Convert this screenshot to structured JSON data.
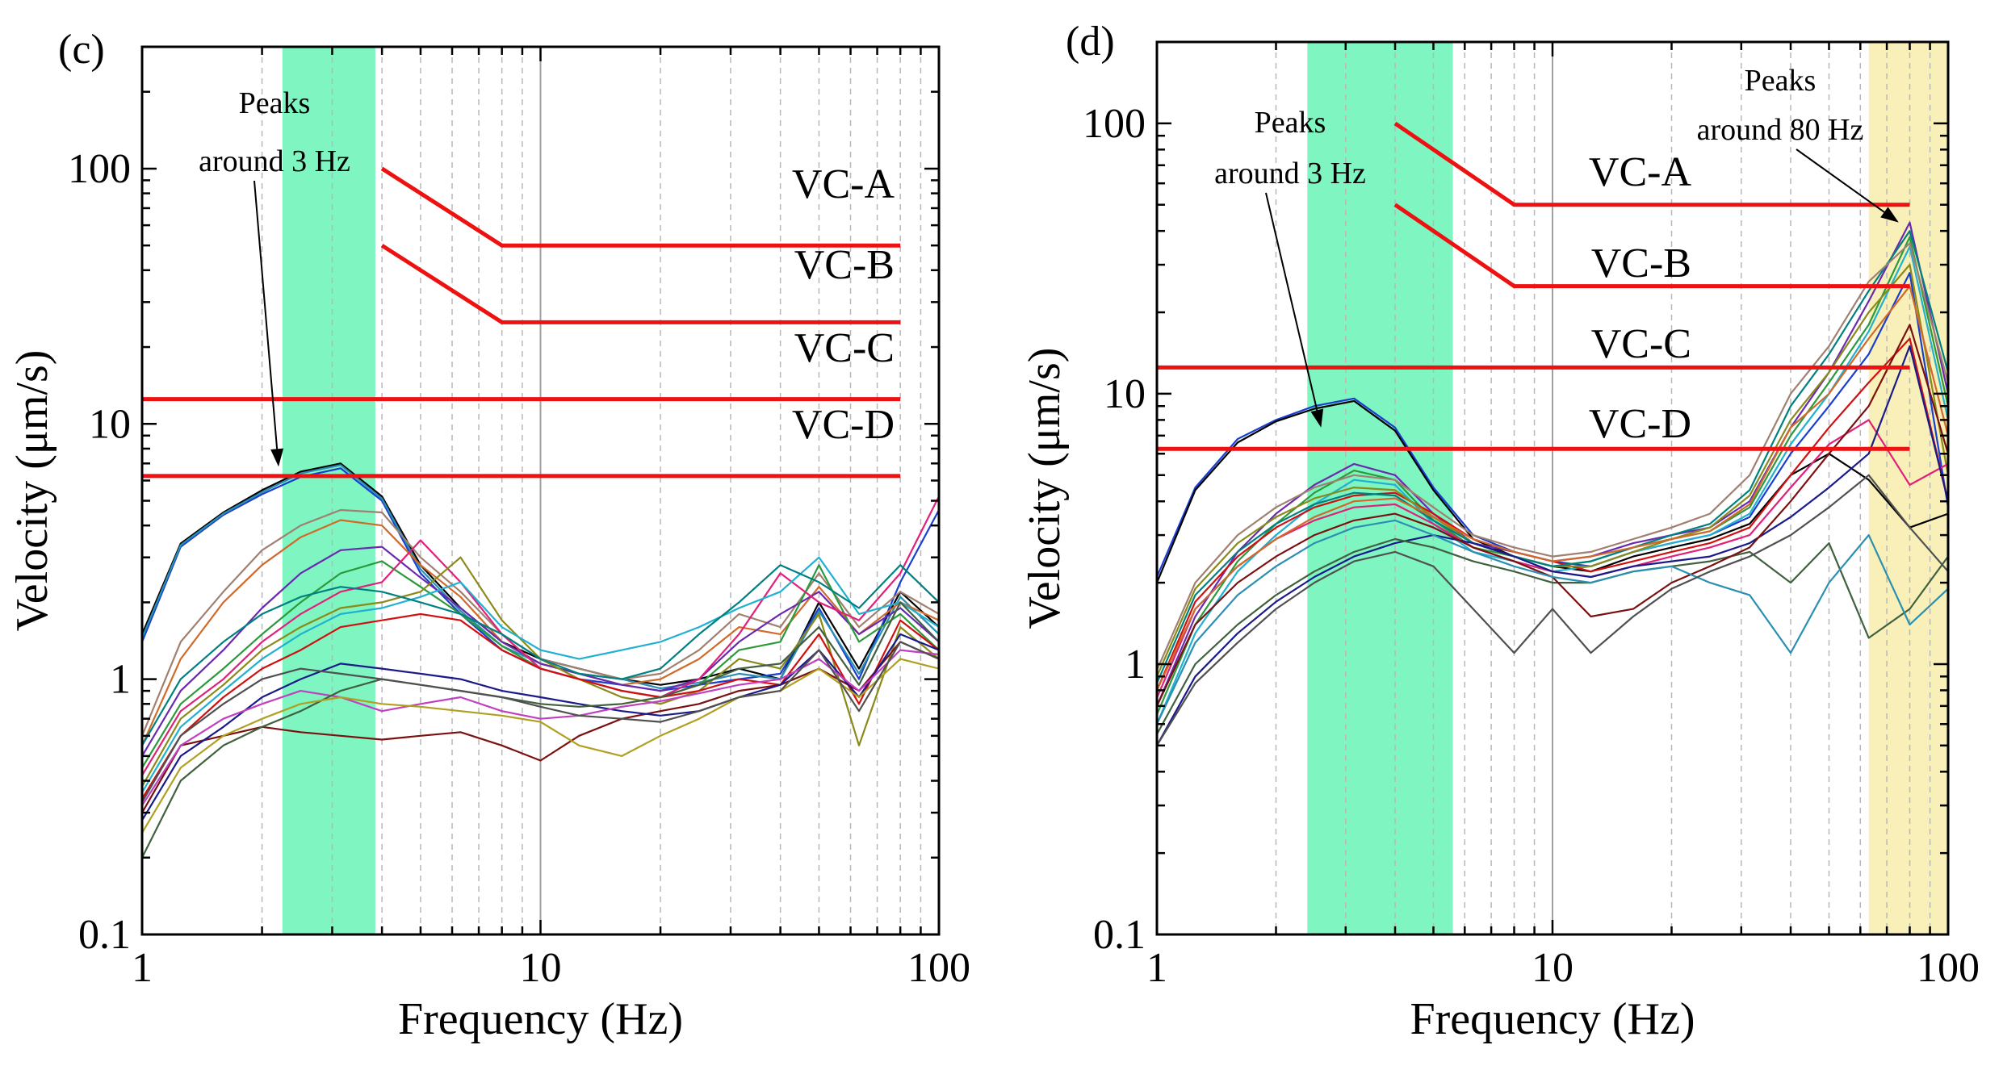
{
  "chart_data": [
    {
      "panel_label": "(c)",
      "type": "line",
      "xlabel": "Frequency (Hz)",
      "ylabel": "Velocity (μm/s)",
      "xscale": "log",
      "yscale": "log",
      "xlim": [
        1,
        100
      ],
      "ylim": [
        0.1,
        300
      ],
      "x_tick_labels": [
        "1",
        "10",
        "100"
      ],
      "y_tick_labels": [
        "0.1",
        "1",
        "10",
        "100"
      ],
      "criteria": [
        {
          "name": "VC-A",
          "points": [
            [
              4,
              100
            ],
            [
              8,
              50
            ],
            [
              80,
              50
            ]
          ]
        },
        {
          "name": "VC-B",
          "points": [
            [
              4,
              50
            ],
            [
              8,
              25
            ],
            [
              80,
              25
            ]
          ]
        },
        {
          "name": "VC-C",
          "points": [
            [
              1,
              12.5
            ],
            [
              80,
              12.5
            ]
          ]
        },
        {
          "name": "VC-D",
          "points": [
            [
              1,
              6.25
            ],
            [
              80,
              6.25
            ]
          ]
        }
      ],
      "highlight_bands": [
        {
          "x_range": [
            2.25,
            3.85
          ],
          "color": "#7ff5c2"
        }
      ],
      "annotations": [
        {
          "line1": "Peaks",
          "line2": "around 3 Hz",
          "arrow_to": [
            2.2,
            6.8
          ]
        }
      ],
      "x_values": [
        1,
        1.25,
        1.6,
        2,
        2.5,
        3.15,
        4,
        5,
        6.3,
        8,
        10,
        12.5,
        16,
        20,
        25,
        31.5,
        40,
        50,
        63,
        80,
        100
      ],
      "series": [
        {
          "color": "#000000",
          "values": [
            1.5,
            3.4,
            4.5,
            5.5,
            6.5,
            7.0,
            5.2,
            2.8,
            1.9,
            1.4,
            1.2,
            1.1,
            1.0,
            0.95,
            1.0,
            1.1,
            1.0,
            2.0,
            1.1,
            2.2,
            1.6
          ]
        },
        {
          "color": "#1a3fd0",
          "values": [
            1.4,
            3.3,
            4.4,
            5.3,
            6.2,
            6.7,
            5.0,
            2.6,
            1.8,
            1.3,
            1.1,
            1.0,
            0.95,
            0.9,
            0.95,
            1.0,
            1.05,
            1.9,
            1.0,
            2.4,
            4.6
          ]
        },
        {
          "color": "#2a8fb0",
          "values": [
            1.45,
            3.35,
            4.45,
            5.4,
            6.4,
            6.9,
            5.1,
            2.7,
            1.85,
            1.35,
            1.15,
            1.05,
            1.0,
            0.92,
            0.97,
            1.05,
            1.0,
            1.85,
            1.05,
            2.1,
            1.5
          ]
        },
        {
          "color": "#a08070",
          "values": [
            0.6,
            1.4,
            2.2,
            3.2,
            4.0,
            4.6,
            4.5,
            3.0,
            2.2,
            1.5,
            1.2,
            1.1,
            1.0,
            1.05,
            1.3,
            1.8,
            1.6,
            2.6,
            1.6,
            2.2,
            1.8
          ]
        },
        {
          "color": "#d06a2a",
          "values": [
            0.55,
            1.2,
            2.0,
            2.8,
            3.6,
            4.2,
            4.0,
            2.8,
            2.1,
            1.4,
            1.15,
            1.05,
            0.95,
            1.0,
            1.2,
            1.6,
            1.5,
            2.3,
            1.5,
            2.0,
            1.7
          ]
        },
        {
          "color": "#6a2ab0",
          "values": [
            0.5,
            0.9,
            1.3,
            1.9,
            2.6,
            3.2,
            3.3,
            2.5,
            1.9,
            1.4,
            1.15,
            1.05,
            0.95,
            0.9,
            1.0,
            1.4,
            1.8,
            2.2,
            1.5,
            1.9,
            1.4
          ]
        },
        {
          "color": "#2a9a3a",
          "values": [
            0.45,
            0.8,
            1.1,
            1.5,
            2.0,
            2.6,
            2.9,
            2.3,
            1.8,
            1.35,
            1.1,
            1.0,
            0.9,
            0.85,
            0.95,
            1.3,
            1.4,
            2.8,
            1.4,
            1.8,
            1.3
          ]
        },
        {
          "color": "#e0207a",
          "values": [
            0.42,
            0.75,
            1.0,
            1.4,
            1.8,
            2.2,
            2.4,
            3.5,
            2.4,
            1.5,
            1.1,
            1.0,
            0.9,
            0.85,
            1.0,
            1.5,
            2.6,
            2.0,
            1.7,
            2.6,
            5.2
          ]
        },
        {
          "color": "#8a8a1a",
          "values": [
            0.38,
            0.7,
            0.95,
            1.3,
            1.6,
            1.9,
            2.0,
            2.2,
            3.0,
            1.7,
            1.2,
            1.0,
            0.85,
            0.8,
            0.9,
            1.2,
            1.1,
            1.8,
            0.55,
            1.6,
            1.2
          ]
        },
        {
          "color": "#20b0d0",
          "values": [
            0.36,
            0.65,
            0.9,
            1.2,
            1.5,
            1.8,
            1.9,
            2.1,
            2.4,
            1.6,
            1.3,
            1.2,
            1.3,
            1.4,
            1.6,
            1.9,
            2.2,
            3.0,
            1.8,
            2.0,
            1.6
          ]
        },
        {
          "color": "#d01010",
          "values": [
            0.34,
            0.6,
            0.85,
            1.1,
            1.3,
            1.6,
            1.7,
            1.8,
            1.7,
            1.3,
            1.1,
            1.0,
            0.9,
            0.85,
            0.9,
            1.0,
            0.95,
            1.5,
            0.8,
            1.7,
            1.3
          ]
        },
        {
          "color": "#7a1010",
          "values": [
            0.3,
            0.55,
            0.6,
            0.65,
            0.62,
            0.6,
            0.58,
            0.6,
            0.62,
            0.55,
            0.48,
            0.6,
            0.7,
            0.75,
            0.8,
            0.9,
            0.95,
            1.1,
            0.9,
            1.4,
            1.2
          ]
        },
        {
          "color": "#1a1a8a",
          "values": [
            0.28,
            0.5,
            0.65,
            0.85,
            1.0,
            1.15,
            1.1,
            1.05,
            1.0,
            0.9,
            0.85,
            0.8,
            0.75,
            0.72,
            0.75,
            0.85,
            0.95,
            1.3,
            0.85,
            1.5,
            1.3
          ]
        },
        {
          "color": "#c040c0",
          "values": [
            0.32,
            0.55,
            0.7,
            0.8,
            0.9,
            0.85,
            0.75,
            0.8,
            0.85,
            0.75,
            0.7,
            0.72,
            0.78,
            0.82,
            0.88,
            0.95,
            1.0,
            1.2,
            0.9,
            1.3,
            1.25
          ]
        },
        {
          "color": "#406040",
          "values": [
            0.2,
            0.4,
            0.55,
            0.65,
            0.75,
            0.9,
            1.0,
            0.95,
            0.9,
            0.85,
            0.8,
            0.78,
            0.8,
            0.85,
            0.95,
            1.1,
            1.15,
            1.6,
            0.95,
            2.0,
            1.4
          ]
        },
        {
          "color": "#008080",
          "values": [
            0.55,
            1.0,
            1.4,
            1.8,
            2.1,
            2.3,
            2.2,
            2.0,
            1.8,
            1.5,
            1.2,
            1.05,
            1.0,
            1.1,
            1.5,
            2.0,
            2.8,
            2.4,
            1.9,
            2.8,
            2.0
          ]
        },
        {
          "color": "#b0a020",
          "values": [
            0.25,
            0.45,
            0.6,
            0.7,
            0.8,
            0.85,
            0.8,
            0.78,
            0.75,
            0.72,
            0.68,
            0.55,
            0.5,
            0.6,
            0.7,
            0.85,
            0.9,
            1.1,
            0.85,
            1.2,
            1.1
          ]
        },
        {
          "color": "#505050",
          "values": [
            0.33,
            0.6,
            0.8,
            1.0,
            1.1,
            1.05,
            1.0,
            0.95,
            0.9,
            0.85,
            0.78,
            0.72,
            0.7,
            0.68,
            0.75,
            0.85,
            0.9,
            1.3,
            0.75,
            1.4,
            1.2
          ]
        }
      ]
    },
    {
      "panel_label": "(d)",
      "type": "line",
      "xlabel": "Frequency (Hz)",
      "ylabel": "Velocity (μm/s)",
      "xscale": "log",
      "yscale": "log",
      "xlim": [
        1,
        100
      ],
      "ylim": [
        0.1,
        200
      ],
      "x_tick_labels": [
        "1",
        "10",
        "100"
      ],
      "y_tick_labels": [
        "0.1",
        "1",
        "10",
        "100"
      ],
      "criteria": [
        {
          "name": "VC-A",
          "points": [
            [
              4,
              100
            ],
            [
              8,
              50
            ],
            [
              80,
              50
            ]
          ]
        },
        {
          "name": "VC-B",
          "points": [
            [
              4,
              50
            ],
            [
              8,
              25
            ],
            [
              80,
              25
            ]
          ]
        },
        {
          "name": "VC-C",
          "points": [
            [
              1,
              12.5
            ],
            [
              80,
              12.5
            ]
          ]
        },
        {
          "name": "VC-D",
          "points": [
            [
              1,
              6.25
            ],
            [
              80,
              6.25
            ]
          ]
        }
      ],
      "highlight_bands": [
        {
          "x_range": [
            2.4,
            5.6
          ],
          "color": "#7ff5c2"
        },
        {
          "x_range": [
            63,
            100
          ],
          "color": "#f8f0b8"
        }
      ],
      "annotations": [
        {
          "line1": "Peaks",
          "line2": "around 3 Hz",
          "arrow_to": [
            2.6,
            7.5
          ]
        },
        {
          "line1": "Peaks",
          "line2": "around 80 Hz",
          "arrow_to": [
            75,
            43
          ]
        }
      ],
      "x_values": [
        1,
        1.25,
        1.6,
        2,
        2.5,
        3.15,
        4,
        5,
        6.3,
        8,
        10,
        12.5,
        16,
        20,
        25,
        31.5,
        40,
        50,
        63,
        80,
        100
      ],
      "series": [
        {
          "color": "#1a3fd0",
          "values": [
            2.1,
            4.5,
            6.8,
            8.0,
            9.0,
            9.6,
            7.5,
            4.5,
            3.0,
            2.6,
            2.4,
            2.3,
            2.6,
            2.8,
            3.0,
            3.5,
            6.0,
            9.0,
            14.0,
            28.0,
            3.8
          ]
        },
        {
          "color": "#000000",
          "values": [
            2.0,
            4.4,
            6.6,
            7.9,
            8.8,
            9.4,
            7.3,
            4.4,
            2.9,
            2.5,
            2.3,
            2.2,
            2.5,
            2.7,
            2.9,
            3.3,
            5.0,
            6.0,
            4.8,
            3.2,
            3.6
          ]
        },
        {
          "color": "#6a2ab0",
          "values": [
            0.7,
            1.5,
            2.6,
            3.6,
            4.6,
            5.5,
            5.0,
            3.6,
            2.8,
            2.6,
            2.4,
            2.5,
            2.8,
            3.0,
            3.2,
            4.0,
            7.5,
            12.0,
            22.0,
            43.0,
            10.0
          ]
        },
        {
          "color": "#2a9a3a",
          "values": [
            0.65,
            1.4,
            2.4,
            3.3,
            4.3,
            5.2,
            4.8,
            3.4,
            2.7,
            2.5,
            2.3,
            2.4,
            2.7,
            2.9,
            3.1,
            3.8,
            7.0,
            11.0,
            18.0,
            38.0,
            9.0
          ]
        },
        {
          "color": "#20b0d0",
          "values": [
            0.6,
            1.3,
            2.2,
            3.0,
            3.9,
            4.8,
            4.6,
            3.3,
            2.6,
            2.4,
            2.2,
            2.3,
            2.6,
            2.8,
            3.0,
            3.6,
            6.5,
            10.0,
            17.0,
            35.0,
            8.0
          ]
        },
        {
          "color": "#d01010",
          "values": [
            0.8,
            1.7,
            2.5,
            3.2,
            3.8,
            4.2,
            4.3,
            3.6,
            2.9,
            2.6,
            2.4,
            2.2,
            2.4,
            2.6,
            2.8,
            3.2,
            5.0,
            7.5,
            11.0,
            16.0,
            4.0
          ]
        },
        {
          "color": "#8a8a1a",
          "values": [
            0.9,
            1.9,
            2.8,
            3.5,
            4.1,
            4.5,
            4.4,
            3.5,
            2.8,
            2.5,
            2.3,
            2.3,
            2.6,
            2.9,
            3.2,
            4.2,
            8.0,
            12.0,
            20.0,
            30.0,
            5.0
          ]
        },
        {
          "color": "#e0207a",
          "values": [
            0.75,
            1.6,
            2.3,
            2.9,
            3.4,
            3.8,
            3.9,
            3.3,
            2.7,
            2.4,
            2.2,
            2.1,
            2.3,
            2.5,
            2.7,
            3.0,
            4.5,
            6.5,
            8.0,
            4.6,
            5.5
          ]
        },
        {
          "color": "#008080",
          "values": [
            0.85,
            1.8,
            2.6,
            3.3,
            3.9,
            4.3,
            4.2,
            3.4,
            2.8,
            2.5,
            2.3,
            2.4,
            2.7,
            3.0,
            3.3,
            4.4,
            9.0,
            14.0,
            24.0,
            40.0,
            12.0
          ]
        },
        {
          "color": "#a08070",
          "values": [
            0.95,
            2.0,
            3.0,
            3.8,
            4.5,
            5.0,
            4.8,
            3.8,
            3.0,
            2.7,
            2.5,
            2.6,
            2.9,
            3.2,
            3.6,
            5.0,
            10.0,
            15.0,
            26.0,
            36.0,
            11.0
          ]
        },
        {
          "color": "#1a1a8a",
          "values": [
            0.5,
            0.9,
            1.3,
            1.7,
            2.1,
            2.5,
            2.8,
            3.0,
            2.8,
            2.5,
            2.2,
            2.1,
            2.3,
            2.4,
            2.5,
            2.8,
            3.5,
            4.5,
            6.0,
            15.0,
            4.0
          ]
        },
        {
          "color": "#406040",
          "values": [
            0.55,
            1.0,
            1.4,
            1.8,
            2.2,
            2.6,
            2.9,
            2.7,
            2.4,
            2.2,
            2.0,
            2.0,
            2.2,
            2.3,
            2.4,
            2.6,
            2.0,
            2.8,
            1.25,
            1.6,
            2.5
          ]
        },
        {
          "color": "#7a1010",
          "values": [
            0.7,
            1.4,
            2.0,
            2.5,
            3.0,
            3.4,
            3.6,
            3.2,
            2.7,
            2.4,
            2.1,
            1.5,
            1.6,
            2.0,
            2.3,
            2.7,
            4.0,
            6.0,
            9.0,
            18.0,
            6.0
          ]
        },
        {
          "color": "#2a8fb0",
          "values": [
            0.6,
            1.2,
            1.8,
            2.3,
            2.8,
            3.2,
            3.4,
            3.0,
            2.6,
            2.3,
            2.1,
            2.0,
            2.2,
            2.3,
            2.0,
            1.8,
            1.1,
            2.0,
            3.0,
            1.4,
            1.9
          ]
        },
        {
          "color": "#d06a2a",
          "values": [
            0.8,
            1.6,
            2.3,
            2.9,
            3.5,
            4.0,
            4.1,
            3.5,
            2.9,
            2.6,
            2.4,
            2.5,
            2.7,
            2.9,
            3.1,
            3.9,
            7.5,
            10.0,
            16.0,
            25.0,
            7.0
          ]
        },
        {
          "color": "#505050",
          "values": [
            0.5,
            0.85,
            1.2,
            1.6,
            2.0,
            2.4,
            2.6,
            2.3,
            1.6,
            1.1,
            1.6,
            1.1,
            1.5,
            1.9,
            2.2,
            2.5,
            3.0,
            3.8,
            5.0,
            3.2,
            2.2
          ]
        }
      ]
    }
  ]
}
